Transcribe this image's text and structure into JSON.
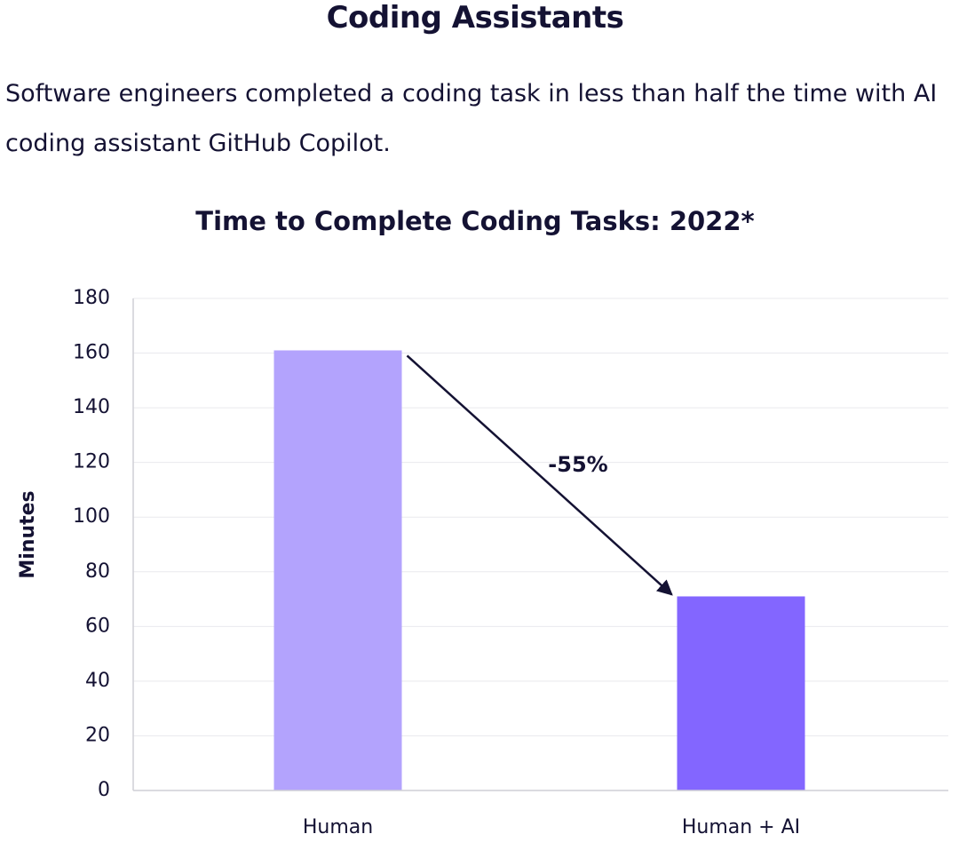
{
  "header": {
    "title": "Coding Assistants",
    "description_line1": "Software engineers completed a coding task in less than half the time with AI",
    "description_line2": "coding assistant GitHub Copilot."
  },
  "colors": {
    "human_bar": "#b3a3fd",
    "human_ai_bar": "#8366ff",
    "grid": "#e9e9ee",
    "axis": "#cfcfd6",
    "text": "#141233"
  },
  "chart_data": {
    "type": "bar",
    "title": "Time to Complete Coding Tasks: 2022*",
    "xlabel": "",
    "ylabel": "Minutes",
    "categories": [
      "Human",
      "Human + AI"
    ],
    "values": [
      161,
      71
    ],
    "ylim": [
      0,
      180
    ],
    "yticks": [
      0,
      20,
      40,
      60,
      80,
      100,
      120,
      140,
      160,
      180
    ],
    "grid": true,
    "legend": "none",
    "annotations": [
      {
        "text": "-55%",
        "from_category": "Human",
        "to_category": "Human + AI"
      }
    ]
  }
}
